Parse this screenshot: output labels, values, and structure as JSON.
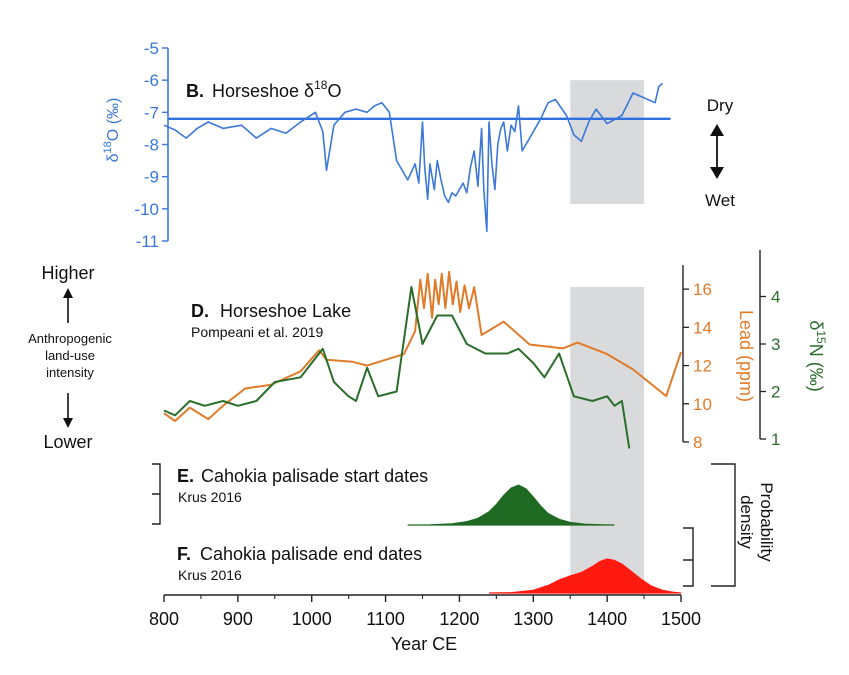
{
  "colors": {
    "d18o": "#3b78d8",
    "lead": "#e07b2a",
    "d15n": "#2b6e2b",
    "palisade_start": "#1f6a22",
    "palisade_end": "#ff1a10",
    "shade": "#d9dadb",
    "axis": "#222222"
  },
  "chart_data": [
    {
      "id": "B",
      "type": "line",
      "panel_label": "B.",
      "title_main": "Horseshoe δ",
      "title_sup": "18",
      "title_end": "O",
      "ylabel_main": "δ",
      "ylabel_sup": "18",
      "ylabel_end": "O (‰)",
      "ylim": [
        -11,
        -5
      ],
      "yticks": [
        -5,
        -6,
        -7,
        -8,
        -9,
        -10,
        -11
      ],
      "ytick_labels": [
        "-5",
        "-6",
        "-7",
        "-8",
        "-9",
        "-10",
        "-11"
      ],
      "reference_value": -7.2,
      "annotation_up": "Dry",
      "annotation_down": "Wet",
      "series": [
        {
          "x": [
            800,
            815,
            830,
            845,
            860,
            880,
            905,
            925,
            945,
            965,
            985,
            1005,
            1015,
            1020,
            1030,
            1045,
            1060,
            1075,
            1085,
            1095,
            1105,
            1115,
            1130,
            1140,
            1145,
            1150,
            1153,
            1157,
            1160,
            1163,
            1166,
            1170,
            1175,
            1180,
            1185,
            1190,
            1195,
            1200,
            1205,
            1210,
            1215,
            1220,
            1225,
            1230,
            1233,
            1237,
            1240,
            1244,
            1248,
            1252,
            1256,
            1260,
            1265,
            1270,
            1275,
            1280,
            1285,
            1295,
            1310,
            1320,
            1330,
            1345,
            1355,
            1365,
            1375,
            1385,
            1400,
            1420,
            1435,
            1465,
            1470,
            1475
          ],
          "y": [
            -7.4,
            -7.55,
            -7.8,
            -7.5,
            -7.3,
            -7.5,
            -7.4,
            -7.8,
            -7.5,
            -7.65,
            -7.3,
            -7.0,
            -7.6,
            -8.8,
            -7.4,
            -7.0,
            -6.9,
            -7.0,
            -6.8,
            -6.7,
            -7.0,
            -8.5,
            -9.1,
            -8.6,
            -9.2,
            -7.3,
            -8.7,
            -9.7,
            -8.6,
            -9.0,
            -9.4,
            -8.5,
            -9.1,
            -9.6,
            -9.8,
            -9.5,
            -9.6,
            -9.4,
            -9.2,
            -9.5,
            -8.7,
            -8.2,
            -9.3,
            -7.5,
            -9.4,
            -10.7,
            -7.3,
            -8.6,
            -9.4,
            -8.0,
            -7.5,
            -7.3,
            -8.2,
            -7.4,
            -7.6,
            -6.8,
            -8.2,
            -7.8,
            -7.2,
            -6.7,
            -6.6,
            -7.1,
            -7.7,
            -7.9,
            -7.3,
            -6.9,
            -7.35,
            -7.1,
            -6.4,
            -6.7,
            -6.2,
            -6.1
          ]
        }
      ]
    },
    {
      "id": "D",
      "type": "line",
      "panel_label": "D.",
      "title_main": "Horseshoe Lake",
      "citation": "Pompeani et al. 2019",
      "left_annotation_top": "Higher",
      "left_annotation_mid_1": "Anthropogenic",
      "left_annotation_mid_2": "land-use",
      "left_annotation_mid_3": "intensity",
      "left_annotation_bottom": "Lower",
      "lead_axis": {
        "label": "Lead (ppm)",
        "ylim": [
          8,
          17
        ],
        "ticks": [
          8,
          10,
          12,
          14,
          16
        ],
        "tick_labels": [
          "8",
          "10",
          "12",
          "14",
          "16"
        ]
      },
      "n_axis": {
        "label_main": "δ",
        "label_sup": "15",
        "label_end": "N (‰)",
        "ylim": [
          1,
          5
        ],
        "ticks": [
          1,
          2,
          3,
          4
        ],
        "tick_labels": [
          "1",
          "2",
          "3",
          "4"
        ]
      },
      "series": [
        {
          "name": "Lead (ppm)",
          "axis": "lead",
          "x": [
            800,
            815,
            835,
            860,
            880,
            910,
            945,
            985,
            1010,
            1020,
            1055,
            1075,
            1100,
            1125,
            1140,
            1147,
            1152,
            1157,
            1163,
            1167,
            1172,
            1176,
            1181,
            1186,
            1191,
            1196,
            1201,
            1207,
            1213,
            1220,
            1230,
            1260,
            1295,
            1340,
            1360,
            1400,
            1435,
            1480,
            1500
          ],
          "y": [
            9.5,
            9.1,
            9.8,
            9.2,
            9.9,
            10.8,
            11.0,
            11.7,
            12.8,
            12.3,
            12.2,
            12.0,
            12.3,
            12.6,
            13.8,
            16.5,
            15.0,
            16.8,
            14.5,
            16.5,
            15.2,
            16.8,
            15.0,
            16.9,
            15.2,
            16.4,
            14.8,
            16.2,
            15.0,
            16.1,
            13.6,
            14.3,
            13.1,
            12.9,
            13.2,
            12.6,
            11.8,
            10.4,
            12.7
          ]
        },
        {
          "name": "δ15N (‰)",
          "axis": "n",
          "x": [
            800,
            815,
            835,
            855,
            880,
            900,
            925,
            950,
            985,
            1015,
            1030,
            1050,
            1060,
            1075,
            1090,
            1115,
            1135,
            1150,
            1170,
            1190,
            1210,
            1235,
            1265,
            1280,
            1300,
            1315,
            1335,
            1355,
            1380,
            1400,
            1410,
            1420,
            1430
          ],
          "y": [
            1.6,
            1.5,
            1.8,
            1.7,
            1.8,
            1.7,
            1.8,
            2.2,
            2.3,
            2.9,
            2.2,
            1.9,
            1.8,
            2.5,
            1.9,
            2.0,
            4.2,
            3.0,
            3.6,
            3.6,
            3.0,
            2.8,
            2.8,
            2.9,
            2.6,
            2.3,
            2.8,
            1.9,
            1.8,
            1.9,
            1.7,
            1.8,
            0.8
          ]
        }
      ]
    },
    {
      "id": "E",
      "type": "area",
      "panel_label": "E.",
      "title_main": "Cahokia palisade start dates",
      "citation": "Krus 2016",
      "series": [
        {
          "name": "Cahokia palisade start dates",
          "x": [
            1130,
            1160,
            1190,
            1210,
            1225,
            1240,
            1250,
            1260,
            1270,
            1280,
            1290,
            1300,
            1310,
            1320,
            1335,
            1350,
            1370,
            1395,
            1410
          ],
          "y": [
            0,
            0.005,
            0.03,
            0.08,
            0.16,
            0.32,
            0.5,
            0.72,
            0.9,
            0.97,
            0.88,
            0.68,
            0.46,
            0.28,
            0.14,
            0.06,
            0.02,
            0.005,
            0
          ]
        }
      ]
    },
    {
      "id": "F",
      "type": "area",
      "panel_label": "F.",
      "title_main": "Cahokia palisade end dates",
      "citation": "Krus 2016",
      "right_axis_label": "Probability density",
      "series": [
        {
          "name": "Cahokia palisade end dates",
          "x": [
            1240,
            1270,
            1300,
            1320,
            1335,
            1350,
            1365,
            1380,
            1390,
            1400,
            1410,
            1420,
            1430,
            1445,
            1460,
            1475,
            1490,
            1500
          ],
          "y": [
            0,
            0.01,
            0.08,
            0.22,
            0.38,
            0.5,
            0.6,
            0.78,
            0.92,
            1.0,
            0.96,
            0.85,
            0.68,
            0.42,
            0.2,
            0.08,
            0.02,
            0
          ]
        }
      ]
    },
    {
      "id": "shared-x-axis",
      "type": "line",
      "xlabel": "Year CE",
      "xlim": [
        800,
        1500
      ],
      "xticks": [
        800,
        900,
        1000,
        1100,
        1200,
        1300,
        1400,
        1500
      ],
      "xtick_labels": [
        "800",
        "900",
        "1000",
        "1100",
        "1200",
        "1300",
        "1400",
        "1500"
      ],
      "shaded_interval": [
        1350,
        1450
      ]
    }
  ]
}
